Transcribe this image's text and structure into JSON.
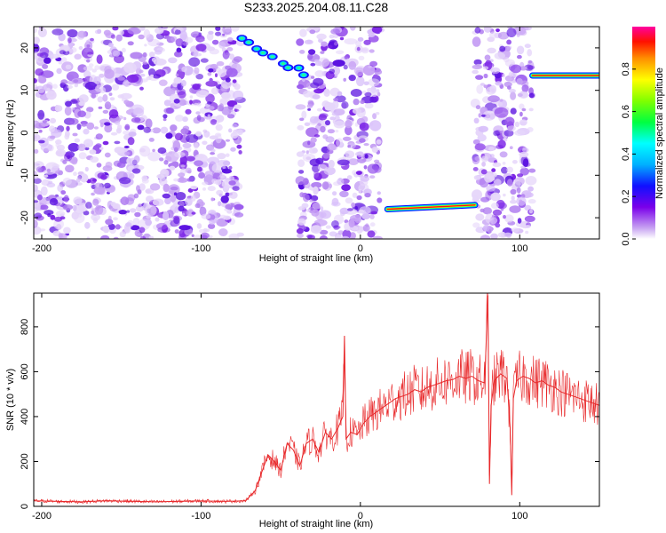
{
  "title": "S233.2025.204.08.11.C28",
  "chart_data": [
    {
      "type": "heatmap",
      "xlabel": "Height of straight line (km)",
      "ylabel": "Frequency (Hz)",
      "xlim": [
        -205,
        150
      ],
      "ylim": [
        -25,
        25
      ],
      "xticks": [
        -200,
        -100,
        0,
        100
      ],
      "xtick_labels": [
        "-200",
        "-100",
        "0",
        "100"
      ],
      "yticks": [
        -20,
        -10,
        0,
        10,
        20
      ],
      "ytick_labels": [
        "-20",
        "-10",
        "0",
        "10",
        "20"
      ],
      "colorbar": {
        "label": "Normalized spectral amplitude",
        "range": [
          0,
          1
        ],
        "ticks": [
          0.0,
          0.2,
          0.4,
          0.6,
          0.8
        ],
        "tick_labels": [
          "0.0",
          "0.2",
          "0.4",
          "0.6",
          "0.8"
        ]
      },
      "noise_regions_km": [
        [
          -205,
          -75
        ],
        [
          -38,
          12
        ],
        [
          72,
          108
        ]
      ],
      "blank_regions_km": [
        [
          -75,
          -38
        ],
        [
          12,
          72
        ],
        [
          108,
          150
        ]
      ],
      "bands": [
        {
          "x": [
            -75,
            -35
          ],
          "freq": [
            22,
            14
          ],
          "amplitude": 0.5
        },
        {
          "x": [
            17,
            72
          ],
          "freq": [
            -18,
            -17
          ],
          "amplitude": 1.0
        },
        {
          "x": [
            108,
            150
          ],
          "freq": [
            13.5,
            13.5
          ],
          "amplitude": 1.0
        }
      ]
    },
    {
      "type": "line",
      "xlabel": "Height of straight line (km)",
      "ylabel": "SNR (10 * v/v)",
      "xlim": [
        -205,
        150
      ],
      "ylim": [
        0,
        950
      ],
      "xticks": [
        -200,
        -100,
        0,
        100
      ],
      "xtick_labels": [
        "-200",
        "-100",
        "0",
        "100"
      ],
      "yticks": [
        0,
        200,
        400,
        600,
        800
      ],
      "ytick_labels": [
        "0",
        "200",
        "400",
        "600",
        "800"
      ],
      "color": "#e8282a",
      "x": [
        -205,
        -190,
        -175,
        -160,
        -145,
        -130,
        -115,
        -100,
        -85,
        -72,
        -66,
        -62,
        -58,
        -54,
        -50,
        -46,
        -42,
        -38,
        -34,
        -30,
        -26,
        -22,
        -18,
        -14,
        -11,
        -10,
        -9,
        -6,
        -2,
        2,
        6,
        10,
        14,
        18,
        22,
        26,
        30,
        34,
        38,
        42,
        46,
        50,
        54,
        58,
        62,
        66,
        70,
        74,
        78,
        80,
        81,
        82,
        84,
        88,
        92,
        94,
        95,
        96,
        98,
        102,
        106,
        110,
        114,
        118,
        122,
        126,
        130,
        134,
        138,
        142,
        146,
        150
      ],
      "y": [
        25,
        22,
        20,
        25,
        23,
        20,
        22,
        24,
        22,
        25,
        70,
        150,
        230,
        200,
        160,
        280,
        250,
        180,
        280,
        300,
        240,
        330,
        300,
        350,
        400,
        760,
        300,
        330,
        320,
        370,
        400,
        420,
        440,
        460,
        480,
        490,
        500,
        520,
        510,
        530,
        540,
        550,
        560,
        565,
        580,
        570,
        580,
        560,
        550,
        940,
        100,
        450,
        560,
        590,
        570,
        350,
        50,
        480,
        560,
        580,
        570,
        550,
        560,
        540,
        530,
        510,
        500,
        490,
        480,
        470,
        460,
        450
      ]
    }
  ]
}
